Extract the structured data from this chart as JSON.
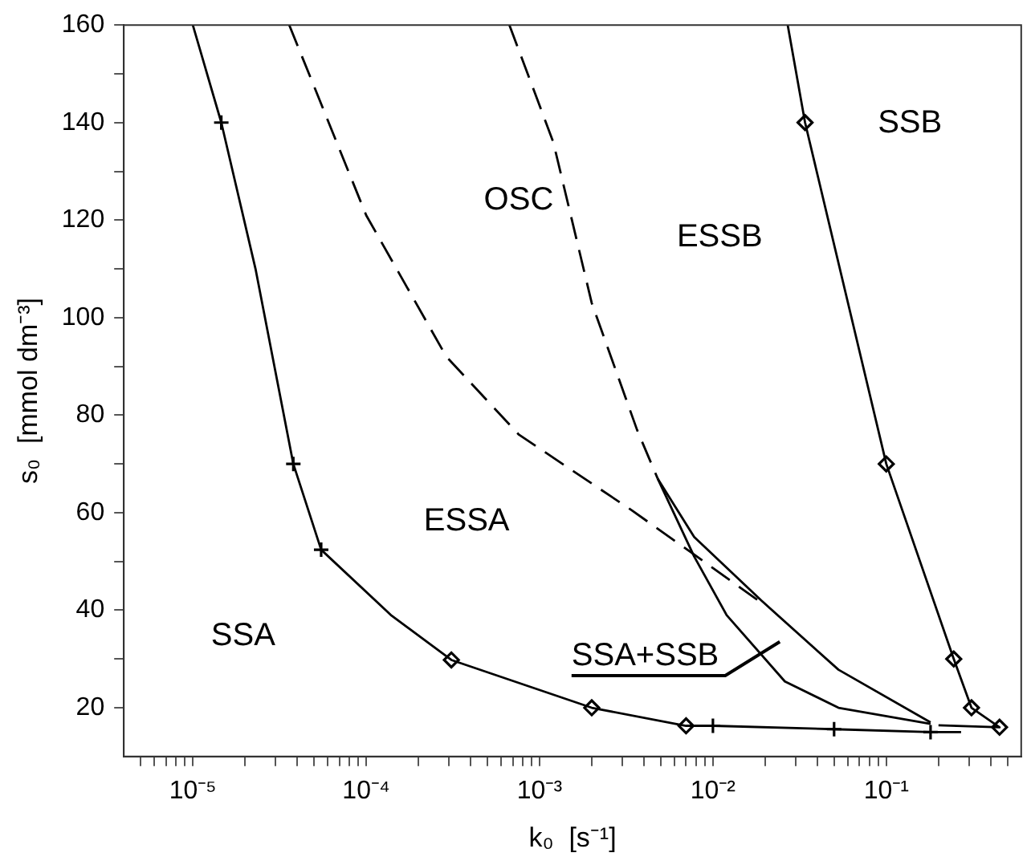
{
  "chart_data": {
    "type": "line",
    "xlabel": "k₀  [s⁻¹]",
    "ylabel": "s₀  [mmol dm⁻³]",
    "log": "x",
    "xlim": [
      4e-06,
      0.6
    ],
    "ylim": [
      10,
      160
    ],
    "xticks": [
      {
        "value": 5e-06,
        "label": null
      },
      {
        "value": 6e-06,
        "label": null
      },
      {
        "value": 7e-06,
        "label": null
      },
      {
        "value": 8e-06,
        "label": null
      },
      {
        "value": 9e-06,
        "label": null
      },
      {
        "value": 1e-05,
        "label": "10⁻⁵"
      },
      {
        "value": 2e-05,
        "label": null
      },
      {
        "value": 3e-05,
        "label": null
      },
      {
        "value": 4e-05,
        "label": null
      },
      {
        "value": 5e-05,
        "label": null
      },
      {
        "value": 6e-05,
        "label": null
      },
      {
        "value": 7e-05,
        "label": null
      },
      {
        "value": 8e-05,
        "label": null
      },
      {
        "value": 9e-05,
        "label": null
      },
      {
        "value": 0.0001,
        "label": "10⁻⁴"
      },
      {
        "value": 0.0002,
        "label": null
      },
      {
        "value": 0.0003,
        "label": null
      },
      {
        "value": 0.0004,
        "label": null
      },
      {
        "value": 0.0005,
        "label": null
      },
      {
        "value": 0.0006,
        "label": null
      },
      {
        "value": 0.0007,
        "label": null
      },
      {
        "value": 0.0008,
        "label": null
      },
      {
        "value": 0.0009,
        "label": null
      },
      {
        "value": 0.001,
        "label": "10⁻³"
      },
      {
        "value": 0.002,
        "label": null
      },
      {
        "value": 0.003,
        "label": null
      },
      {
        "value": 0.004,
        "label": null
      },
      {
        "value": 0.005,
        "label": null
      },
      {
        "value": 0.006,
        "label": null
      },
      {
        "value": 0.007,
        "label": null
      },
      {
        "value": 0.008,
        "label": null
      },
      {
        "value": 0.009,
        "label": null
      },
      {
        "value": 0.01,
        "label": "10⁻²"
      },
      {
        "value": 0.02,
        "label": null
      },
      {
        "value": 0.03,
        "label": null
      },
      {
        "value": 0.04,
        "label": null
      },
      {
        "value": 0.05,
        "label": null
      },
      {
        "value": 0.06,
        "label": null
      },
      {
        "value": 0.07,
        "label": null
      },
      {
        "value": 0.08,
        "label": null
      },
      {
        "value": 0.09,
        "label": null
      },
      {
        "value": 0.1,
        "label": "10⁻¹"
      },
      {
        "value": 0.2,
        "label": null
      },
      {
        "value": 0.3,
        "label": null
      },
      {
        "value": 0.4,
        "label": null
      },
      {
        "value": 0.5,
        "label": null
      }
    ],
    "yticks": [
      20,
      {
        "value": 30,
        "label": null
      },
      40,
      {
        "value": 50,
        "label": null
      },
      60,
      {
        "value": 70,
        "label": null
      },
      80,
      {
        "value": 90,
        "label": null
      },
      100,
      {
        "value": 110,
        "label": null
      },
      120,
      {
        "value": 130,
        "label": null
      },
      140,
      {
        "value": 150,
        "label": null
      },
      160
    ],
    "grid": false,
    "legend": false,
    "series": [
      {
        "color": "#000000",
        "marker": "none",
        "line_style": "solid",
        "x": [
          1e-05,
          1.46e-05,
          2.3e-05,
          3.8e-05,
          5.5e-05,
          0.00014,
          0.00031,
          0.002,
          0.007,
          0.01,
          0.05,
          0.18,
          0.27
        ],
        "values": [
          160,
          140,
          110,
          70,
          52.4,
          38.9,
          29.8,
          20,
          16.3,
          16.3,
          15.6,
          15,
          15
        ]
      },
      {
        "type": "line",
        "color": "#000000",
        "marker": "none",
        "line_style": "solid",
        "x": [
          0.027,
          0.034,
          0.1,
          0.245,
          0.31,
          0.45,
          0.2
        ],
        "values": [
          160,
          140,
          70,
          30,
          20,
          16,
          16.4
        ]
      },
      {
        "type": "line",
        "color": "#000000",
        "marker": "none",
        "line_style": "dashed",
        "x": [
          3.6e-05,
          0.0001,
          0.00029,
          0.00076,
          0.0034,
          0.0078,
          0.02
        ],
        "values": [
          160,
          121,
          92,
          76,
          60.5,
          51.4,
          41
        ]
      },
      {
        "type": "line",
        "color": "#000000",
        "marker": "none",
        "line_style": "dashed",
        "x": [
          0.00067,
          0.0012,
          0.002,
          0.00365,
          0.0048
        ],
        "values": [
          160,
          136,
          103,
          77,
          67
        ]
      },
      {
        "type": "line",
        "color": "#000000",
        "marker": "none",
        "line_style": "solid",
        "x": [
          0.0048,
          0.0078,
          0.019,
          0.053,
          0.18
        ],
        "values": [
          67,
          55,
          42,
          27.8,
          17
        ]
      },
      {
        "type": "line",
        "color": "#000000",
        "marker": "none",
        "line_style": "solid",
        "x": [
          0.0048,
          0.0078,
          0.012,
          0.026,
          0.053,
          0.18
        ],
        "values": [
          67,
          51,
          39,
          25.4,
          20,
          16.7
        ]
      },
      {
        "type": "scatter",
        "color": "#000000",
        "marker": "diamond",
        "x": [
          0.00031,
          0.002,
          0.007,
          0.034,
          0.1,
          0.245,
          0.31,
          0.45
        ],
        "values": [
          29.8,
          20,
          16.3,
          140,
          70,
          30,
          20,
          16
        ]
      },
      {
        "type": "scatter",
        "color": "#000000",
        "marker": "cross",
        "x": [
          1.46e-05,
          3.8e-05,
          5.5e-05,
          0.01,
          0.05,
          0.18
        ],
        "values": [
          140,
          70,
          52.4,
          16.3,
          15.6,
          15
        ]
      }
    ],
    "annotations": [
      "OSC",
      "ESSB",
      "SSB",
      "ESSA",
      "SSA",
      "SSA+SSB"
    ]
  }
}
